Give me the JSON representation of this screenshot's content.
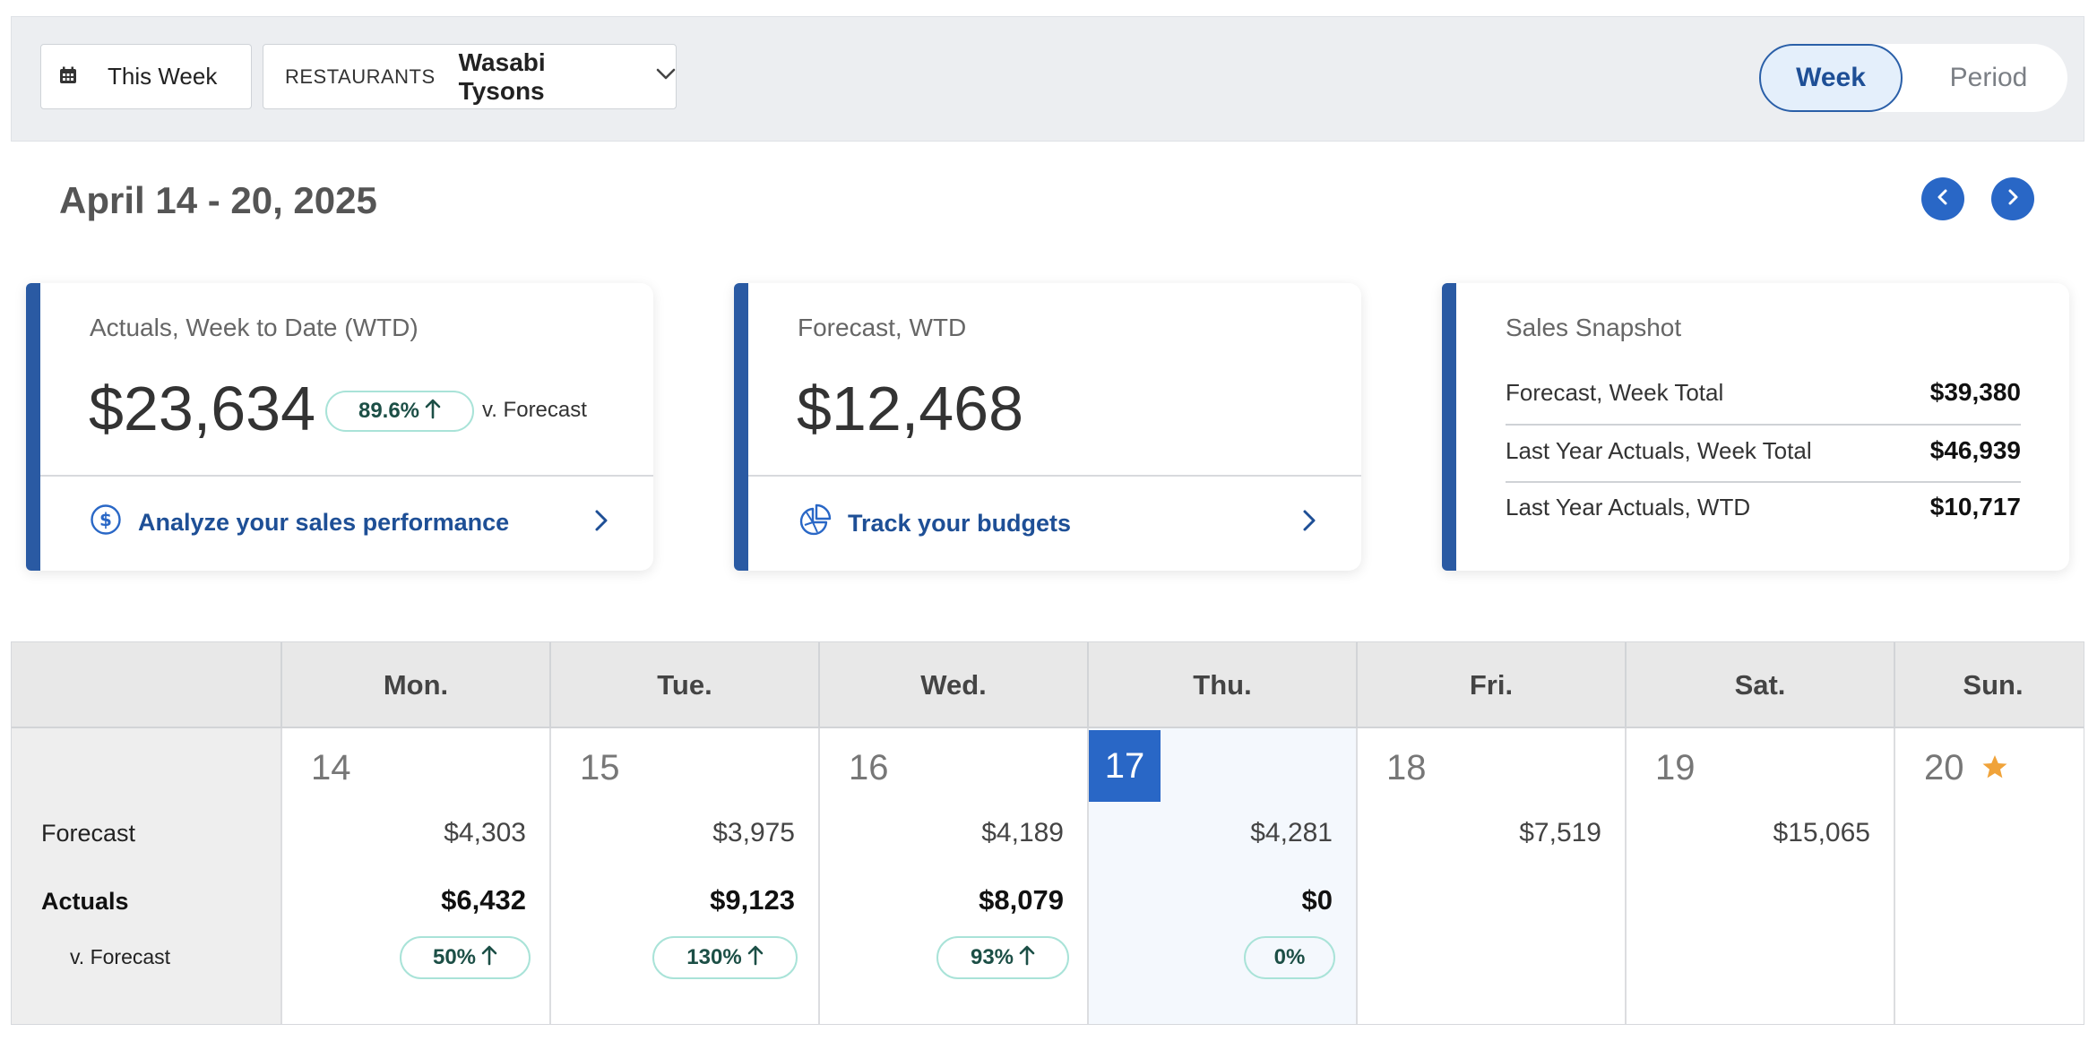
{
  "filters": {
    "week_label": "This Week",
    "restaurant_label": "RESTAURANTS",
    "restaurant_value": "Wasabi Tysons"
  },
  "view_toggle": {
    "week": "Week",
    "period": "Period",
    "selected": "Week"
  },
  "date_range": "April 14 - 20, 2025",
  "cards": {
    "actuals": {
      "title": "Actuals, Week to Date (WTD)",
      "value": "$23,634",
      "pct": "89.6%",
      "vs": "v. Forecast",
      "link": "Analyze your sales performance"
    },
    "forecast": {
      "title": "Forecast, WTD",
      "value": "$12,468",
      "link": "Track your budgets"
    },
    "snapshot": {
      "title": "Sales Snapshot",
      "rows": [
        {
          "label": "Forecast, Week Total",
          "value": "$39,380"
        },
        {
          "label": "Last Year Actuals, Week Total",
          "value": "$46,939"
        },
        {
          "label": "Last Year Actuals, WTD",
          "value": "$10,717"
        }
      ]
    }
  },
  "calendar": {
    "row_labels": {
      "forecast": "Forecast",
      "actuals": "Actuals",
      "vs": "v. Forecast"
    },
    "days": [
      {
        "name": "Mon.",
        "date": "14",
        "forecast": "$4,303",
        "actual": "$6,432",
        "pct": "50%",
        "up": true
      },
      {
        "name": "Tue.",
        "date": "15",
        "forecast": "$3,975",
        "actual": "$9,123",
        "pct": "130%",
        "up": true
      },
      {
        "name": "Wed.",
        "date": "16",
        "forecast": "$4,189",
        "actual": "$8,079",
        "pct": "93%",
        "up": true
      },
      {
        "name": "Thu.",
        "date": "17",
        "forecast": "$4,281",
        "actual": "$0",
        "pct": "0%",
        "up": false,
        "today": true
      },
      {
        "name": "Fri.",
        "date": "18",
        "forecast": "$7,519"
      },
      {
        "name": "Sat.",
        "date": "19",
        "forecast": "$15,065"
      },
      {
        "name": "Sun.",
        "date": "20",
        "starred": true
      }
    ]
  },
  "colors": {
    "accent": "#2967c6",
    "card_bar": "#2a5aa3",
    "pill_border": "#a9e3d8",
    "star": "#f0a33a"
  }
}
